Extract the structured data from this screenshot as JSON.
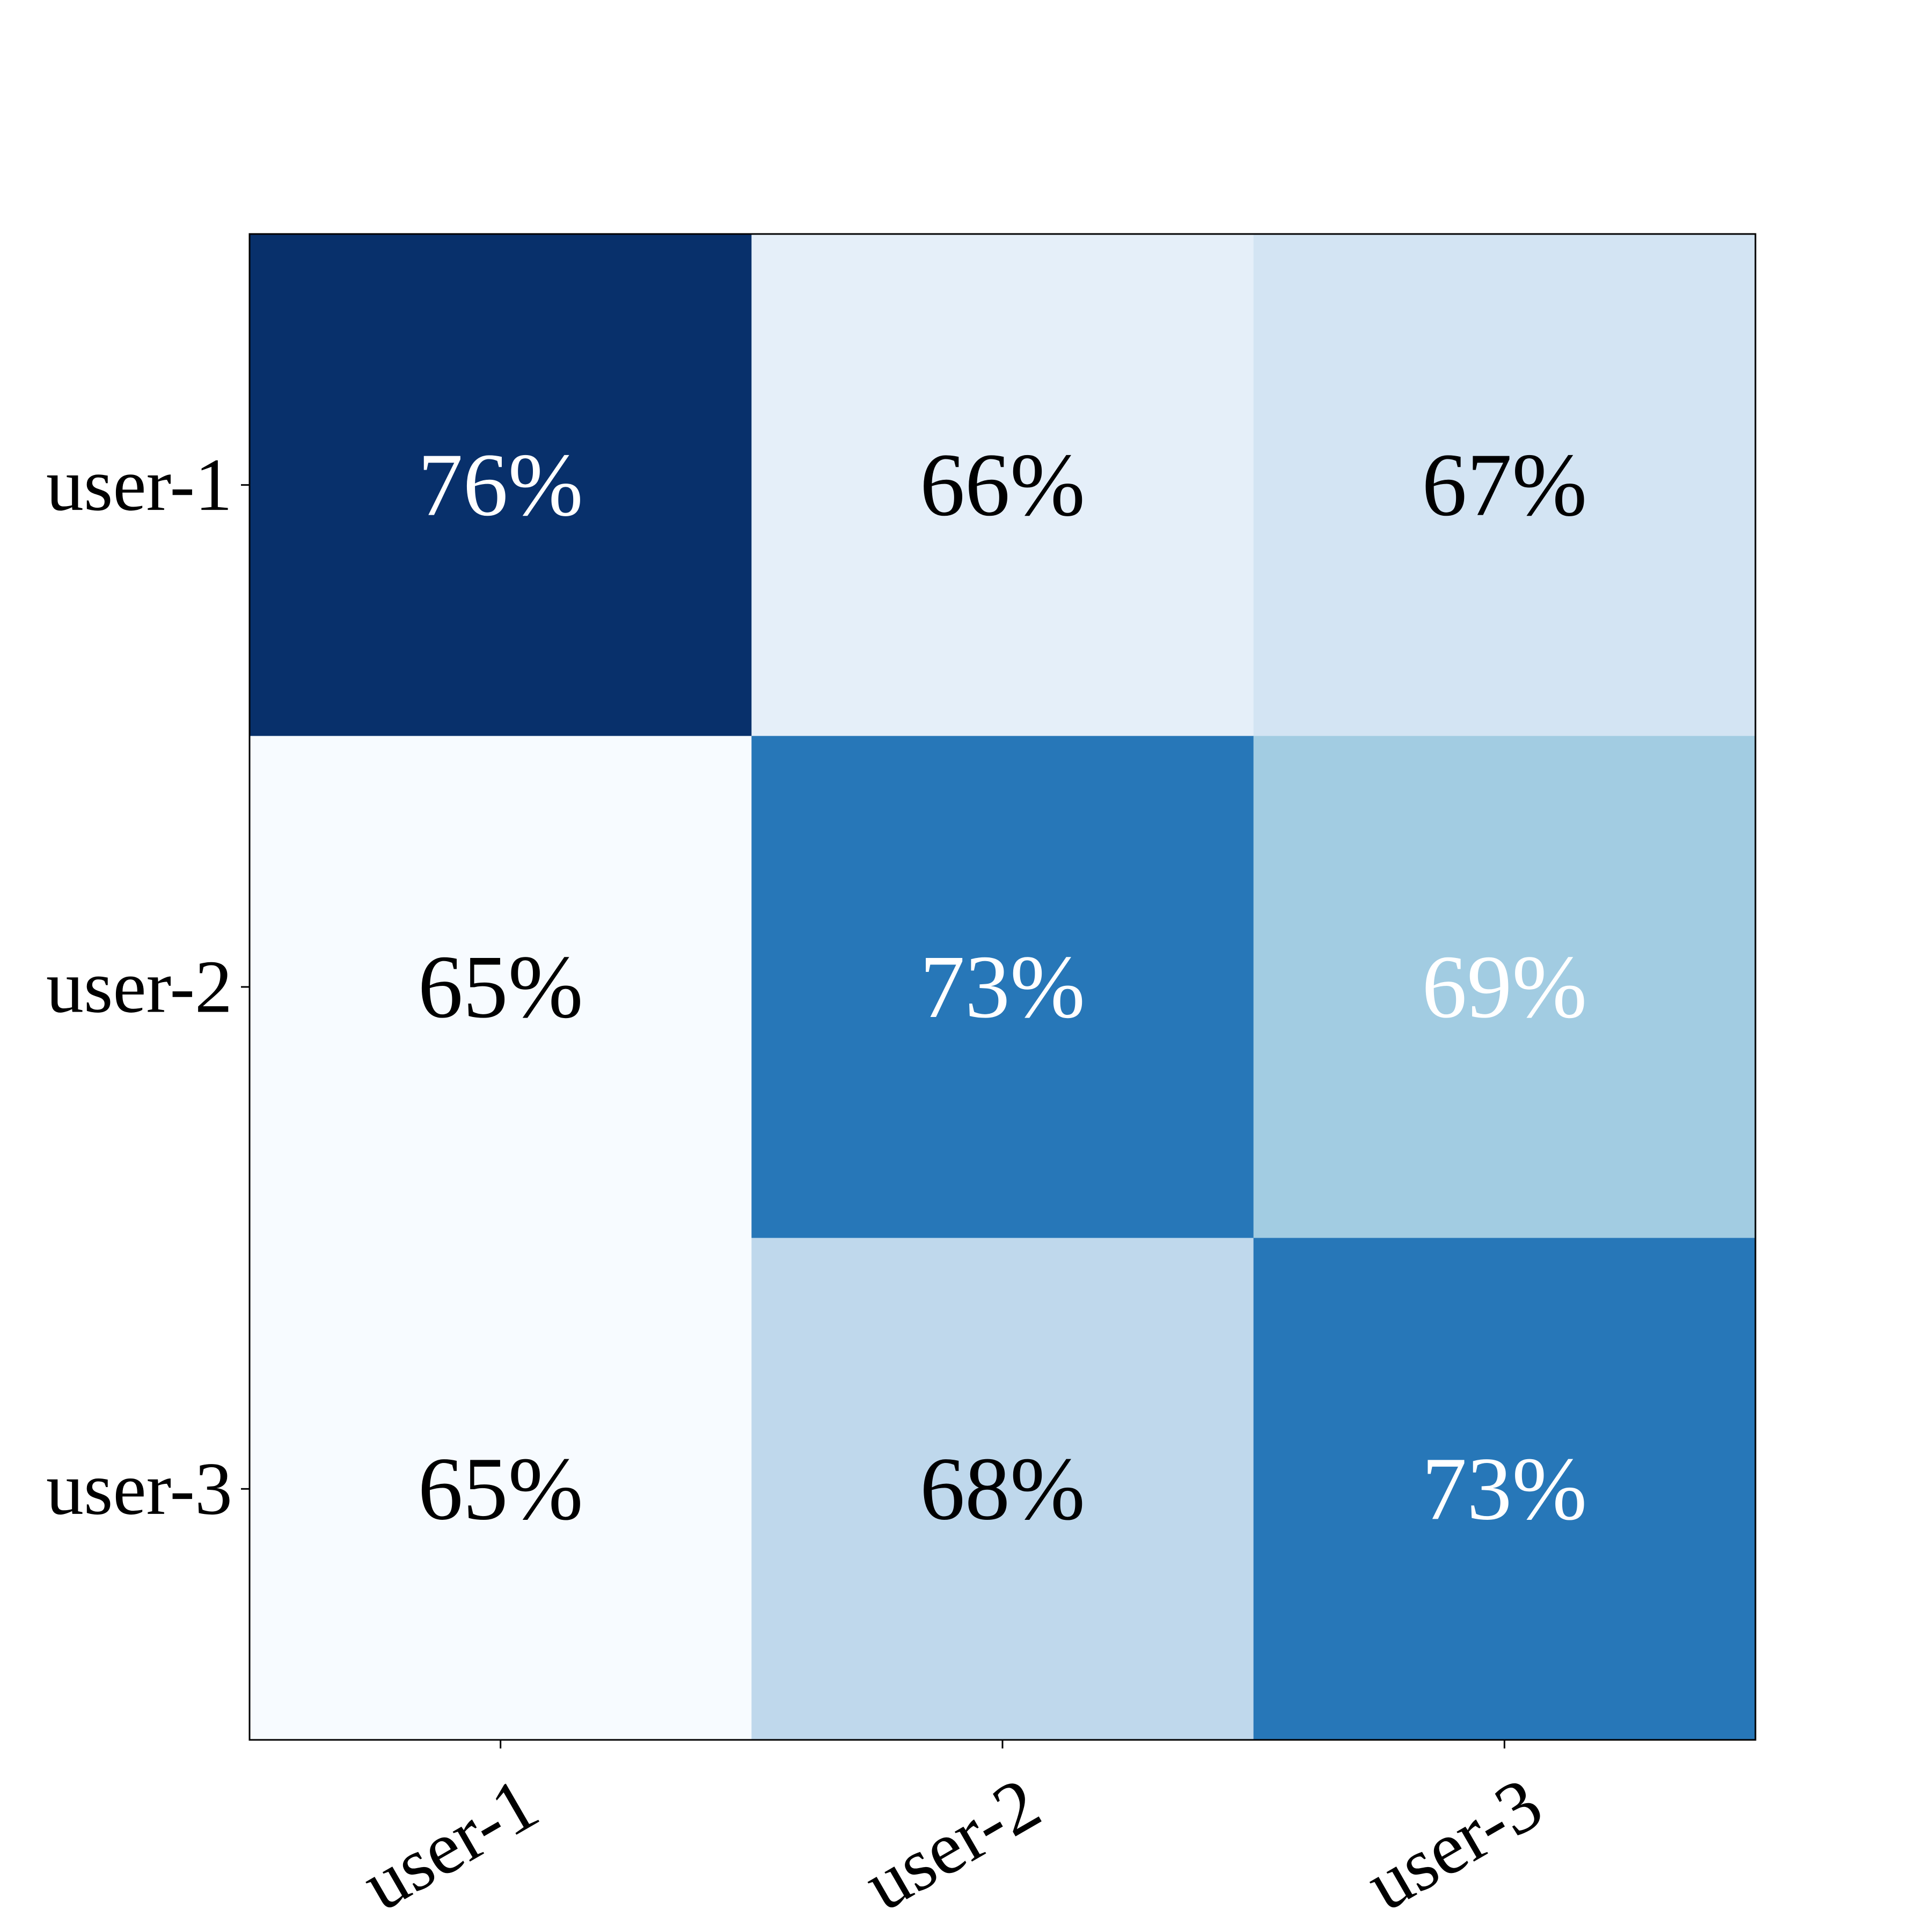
{
  "chart_data": {
    "type": "heatmap",
    "x_categories": [
      "user-1",
      "user-2",
      "user-3"
    ],
    "y_categories": [
      "user-1",
      "user-2",
      "user-3"
    ],
    "values": [
      [
        76,
        66,
        67
      ],
      [
        65,
        73,
        69
      ],
      [
        65,
        68,
        73
      ]
    ],
    "cell_labels": [
      [
        "76%",
        "66%",
        "67%"
      ],
      [
        "65%",
        "73%",
        "69%"
      ],
      [
        "65%",
        "68%",
        "73%"
      ]
    ],
    "label_colors": [
      [
        "#ffffff",
        "#000000",
        "#000000"
      ],
      [
        "#000000",
        "#ffffff",
        "#ffffff"
      ],
      [
        "#000000",
        "#000000",
        "#ffffff"
      ]
    ],
    "colormap": "Blues",
    "value_range": [
      65,
      76
    ],
    "legend": "none",
    "grid": false
  }
}
